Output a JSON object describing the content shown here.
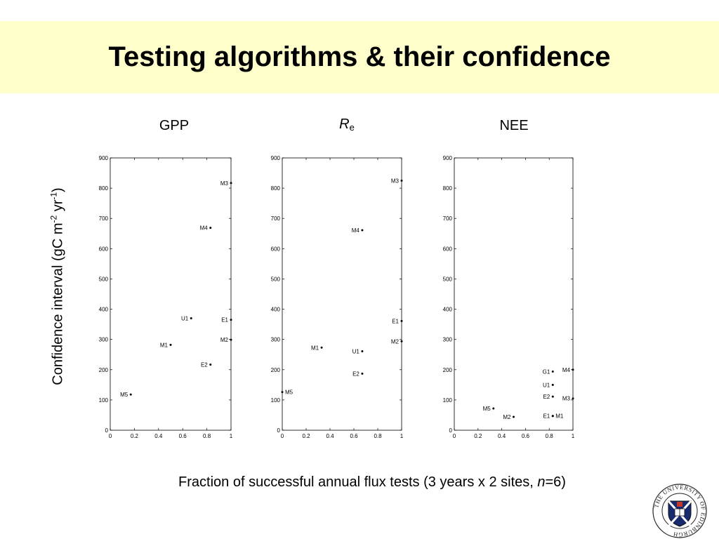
{
  "slide": {
    "title": "Testing algorithms & their confidence",
    "ylabel_text": "Confidence interval (gC m",
    "ylabel_sup1": "-2",
    "ylabel_mid": " yr",
    "ylabel_sup2": "-1",
    "ylabel_end": ")",
    "xlabel_text": "Fraction of successful annual flux tests (3 years x 2 sites, ",
    "xlabel_n": "n",
    "xlabel_end": "=6)",
    "panel_gpp": "GPP",
    "panel_re_main": "R",
    "panel_re_sub": "e",
    "panel_nee": "NEE",
    "logo_text": "THE UNIVERSITY OF EDINBURGH"
  },
  "chart_data": [
    {
      "type": "scatter",
      "title": "GPP",
      "xlim": [
        0,
        1
      ],
      "ylim": [
        0,
        900
      ],
      "xticks": [
        0,
        0.2,
        0.4,
        0.6,
        0.8,
        1
      ],
      "xtick_labels": [
        "0",
        "0.2",
        "0.4",
        "0.6",
        "0.8",
        "1"
      ],
      "yticks": [
        0,
        100,
        200,
        300,
        400,
        500,
        600,
        700,
        800,
        900
      ],
      "points": [
        {
          "label": "M3",
          "x": 1.0,
          "y": 817,
          "side": "left"
        },
        {
          "label": "M4",
          "x": 0.83,
          "y": 669,
          "side": "left"
        },
        {
          "label": "U1",
          "x": 0.67,
          "y": 370,
          "side": "left"
        },
        {
          "label": "E1",
          "x": 1.0,
          "y": 365,
          "side": "left"
        },
        {
          "label": "M1",
          "x": 0.5,
          "y": 282,
          "side": "left"
        },
        {
          "label": "M2",
          "x": 1.0,
          "y": 299,
          "side": "left"
        },
        {
          "label": "E2",
          "x": 0.83,
          "y": 217,
          "side": "left"
        },
        {
          "label": "M5",
          "x": 0.17,
          "y": 118,
          "side": "left"
        }
      ]
    },
    {
      "type": "scatter",
      "title": "Re",
      "xlim": [
        0,
        1
      ],
      "ylim": [
        0,
        900
      ],
      "xticks": [
        0,
        0.2,
        0.4,
        0.6,
        0.8,
        1
      ],
      "xtick_labels": [
        "0",
        "0.2",
        "0.4",
        "0.6",
        "0.8",
        "1"
      ],
      "yticks": [
        0,
        100,
        200,
        300,
        400,
        500,
        600,
        700,
        800,
        900
      ],
      "points": [
        {
          "label": "M3",
          "x": 1.0,
          "y": 825,
          "side": "left"
        },
        {
          "label": "M4",
          "x": 0.67,
          "y": 661,
          "side": "left"
        },
        {
          "label": "E1",
          "x": 1.0,
          "y": 361,
          "side": "left"
        },
        {
          "label": "M2",
          "x": 1.0,
          "y": 294,
          "side": "left"
        },
        {
          "label": "M1",
          "x": 0.33,
          "y": 273,
          "side": "left"
        },
        {
          "label": "U1",
          "x": 0.67,
          "y": 261,
          "side": "left"
        },
        {
          "label": "E2",
          "x": 0.67,
          "y": 187,
          "side": "left"
        },
        {
          "label": "M5",
          "x": 0.0,
          "y": 126,
          "side": "right"
        }
      ]
    },
    {
      "type": "scatter",
      "title": "NEE",
      "xlim": [
        0,
        1
      ],
      "ylim": [
        0,
        900
      ],
      "xticks": [
        0,
        0.2,
        0.4,
        0.6,
        0.8,
        1
      ],
      "xtick_labels": [
        "0",
        "0.2",
        "0.4",
        "0.6",
        "0.8",
        "1"
      ],
      "yticks": [
        0,
        100,
        200,
        300,
        400,
        500,
        600,
        700,
        800,
        900
      ],
      "points": [
        {
          "label": "G1",
          "x": 0.83,
          "y": 194,
          "side": "left"
        },
        {
          "label": "M4",
          "x": 1.0,
          "y": 200,
          "side": "left"
        },
        {
          "label": "U1",
          "x": 0.83,
          "y": 150,
          "side": "left"
        },
        {
          "label": "E2",
          "x": 0.83,
          "y": 111,
          "side": "left"
        },
        {
          "label": "M3",
          "x": 1.0,
          "y": 105,
          "side": "left"
        },
        {
          "label": "M5",
          "x": 0.33,
          "y": 72,
          "side": "left"
        },
        {
          "label": "M2",
          "x": 0.5,
          "y": 44,
          "side": "left"
        },
        {
          "label": "E1",
          "x": 0.83,
          "y": 47,
          "side": "left"
        },
        {
          "label": "M1",
          "x": 0.83,
          "y": 47,
          "side": "right"
        }
      ]
    }
  ]
}
